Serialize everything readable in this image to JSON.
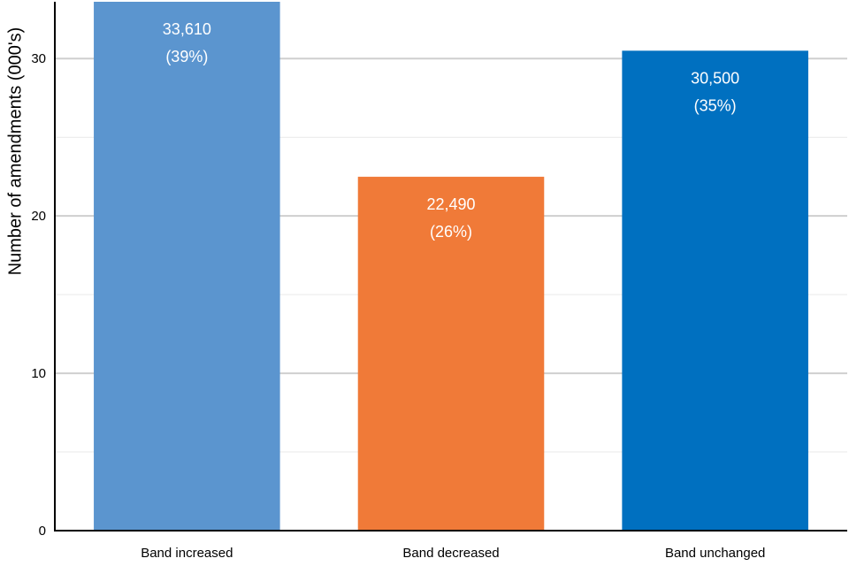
{
  "chart_data": {
    "type": "bar",
    "title": "",
    "xlabel": "",
    "ylabel": "Number of amendments (000's)",
    "ylim": [
      0,
      33.61
    ],
    "yticks": [
      0,
      10,
      20,
      30
    ],
    "grid": true,
    "categories": [
      "Band increased",
      "Band decreased",
      "Band unchanged"
    ],
    "values": [
      33.61,
      22.49,
      30.5
    ],
    "value_labels": [
      "33,610",
      "22,490",
      "30,500"
    ],
    "percent_labels": [
      "(39%)",
      "(26%)",
      "(35%)"
    ],
    "colors": [
      "#5b95cf",
      "#f07a38",
      "#0070c0"
    ]
  }
}
